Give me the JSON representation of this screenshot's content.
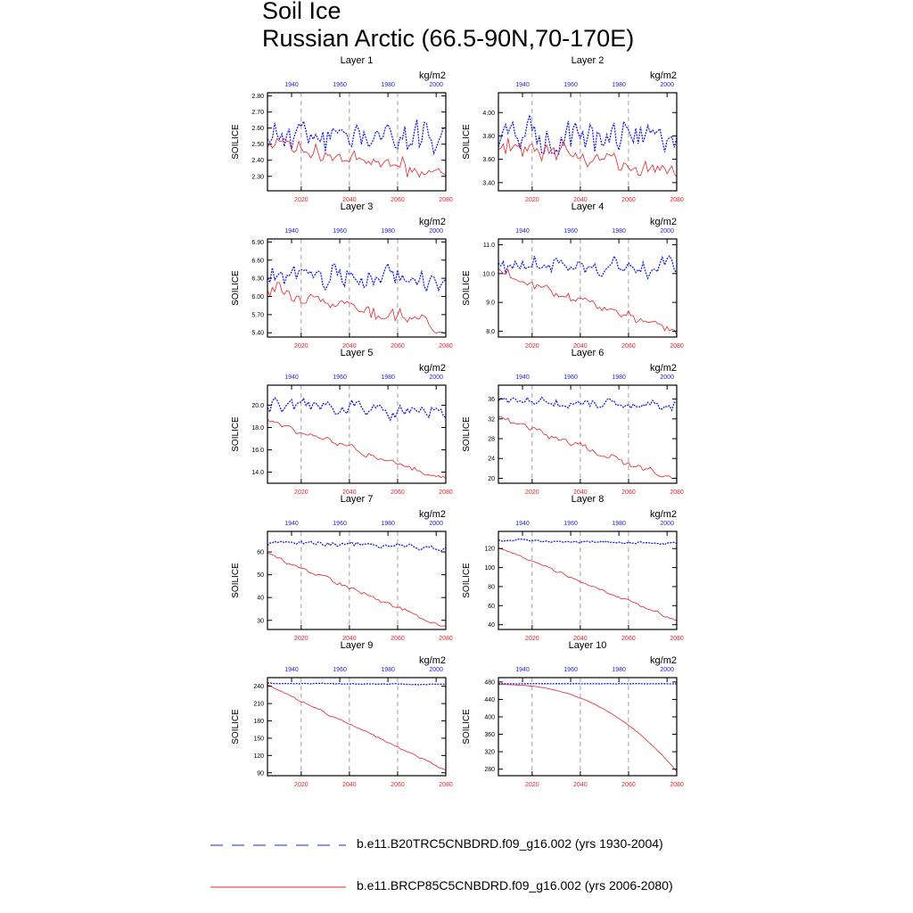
{
  "title": "Soil Ice",
  "subtitle": "Russian Arctic (66.5-90N,70-170E)",
  "colors": {
    "historical": "#1f1fe0",
    "future": "#e8242a",
    "axis": "#000000",
    "grid": "#888888"
  },
  "legend": [
    {
      "label": "b.e11.B20TRC5CNBDRD.f09_g16.002 (yrs 1930-2004)",
      "style": "dashed",
      "color": "#1f1fe0"
    },
    {
      "label": "b.e11.BRCP85C5CNBDRD.f09_g16.002 (yrs 2006-2080)",
      "style": "solid",
      "color": "#e8242a"
    }
  ],
  "chart_data": [
    {
      "type": "line",
      "title": "Layer 1",
      "units": "kg/m2",
      "ylabel": "SOILICE",
      "yticks": [
        "2.30",
        "2.40",
        "2.50",
        "2.60",
        "2.70",
        "2.80"
      ],
      "ylim": [
        2.21,
        2.82
      ],
      "top_axis_label": [
        "1940",
        "1960",
        "1980",
        "2000"
      ],
      "bottom_axis_label": [
        "2020",
        "2040",
        "2060",
        "2080"
      ],
      "x_top_range": [
        1930,
        2004
      ],
      "x_bottom_range": [
        2006,
        2080
      ],
      "series": [
        {
          "name": "b.e11.B20TRC5CNBDRD.f09_g16.002",
          "mean_start": 2.55,
          "mean_end": 2.55,
          "noise": 0.13,
          "seed": 11
        },
        {
          "name": "b.e11.BRCP85C5CNBDRD.f09_g16.002",
          "mean_start": 2.5,
          "mean_end": 2.32,
          "noise": 0.07,
          "seed": 12
        }
      ]
    },
    {
      "type": "line",
      "title": "Layer 2",
      "units": "kg/m2",
      "ylabel": "SOILICE",
      "yticks": [
        "3.40",
        "3.60",
        "3.80",
        "4.00"
      ],
      "ylim": [
        3.33,
        4.17
      ],
      "top_axis_label": [
        "1940",
        "1960",
        "1980",
        "2000"
      ],
      "bottom_axis_label": [
        "2020",
        "2040",
        "2060",
        "2080"
      ],
      "x_top_range": [
        1930,
        2004
      ],
      "x_bottom_range": [
        2006,
        2080
      ],
      "series": [
        {
          "name": "b.e11.B20TRC5CNBDRD.f09_g16.002",
          "mean_start": 3.8,
          "mean_end": 3.8,
          "noise": 0.17,
          "seed": 21
        },
        {
          "name": "b.e11.BRCP85C5CNBDRD.f09_g16.002",
          "mean_start": 3.75,
          "mean_end": 3.48,
          "noise": 0.1,
          "seed": 22
        }
      ]
    },
    {
      "type": "line",
      "title": "Layer 3",
      "units": "kg/m2",
      "ylabel": "SOILICE",
      "yticks": [
        "5.40",
        "5.70",
        "6.00",
        "6.30",
        "6.60",
        "6.90"
      ],
      "ylim": [
        5.33,
        6.95
      ],
      "top_axis_label": [
        "1940",
        "1960",
        "1980",
        "2000"
      ],
      "bottom_axis_label": [
        "2020",
        "2040",
        "2060",
        "2080"
      ],
      "x_top_range": [
        1930,
        2004
      ],
      "x_bottom_range": [
        2006,
        2080
      ],
      "series": [
        {
          "name": "b.e11.B20TRC5CNBDRD.f09_g16.002",
          "mean_start": 6.35,
          "mean_end": 6.3,
          "noise": 0.24,
          "seed": 31
        },
        {
          "name": "b.e11.BRCP85C5CNBDRD.f09_g16.002",
          "mean_start": 6.15,
          "mean_end": 5.5,
          "noise": 0.15,
          "seed": 32
        }
      ]
    },
    {
      "type": "line",
      "title": "Layer 4",
      "units": "kg/m2",
      "ylabel": "SOILICE",
      "yticks": [
        "8.0",
        "9.0",
        "10.0",
        "11.0"
      ],
      "ylim": [
        7.8,
        11.2
      ],
      "top_axis_label": [
        "1940",
        "1960",
        "1980",
        "2000"
      ],
      "bottom_axis_label": [
        "2020",
        "2040",
        "2060",
        "2080"
      ],
      "x_top_range": [
        1930,
        2004
      ],
      "x_bottom_range": [
        2006,
        2080
      ],
      "series": [
        {
          "name": "b.e11.B20TRC5CNBDRD.f09_g16.002",
          "mean_start": 10.3,
          "mean_end": 10.1,
          "noise": 0.45,
          "seed": 41
        },
        {
          "name": "b.e11.BRCP85C5CNBDRD.f09_g16.002",
          "mean_start": 10.0,
          "mean_end": 8.0,
          "noise": 0.22,
          "seed": 42
        }
      ]
    },
    {
      "type": "line",
      "title": "Layer 5",
      "units": "kg/m2",
      "ylabel": "SOILICE",
      "yticks": [
        "14.0",
        "16.0",
        "18.0",
        "20.0"
      ],
      "ylim": [
        13.0,
        21.8
      ],
      "top_axis_label": [
        "1940",
        "1960",
        "1980",
        "2000"
      ],
      "bottom_axis_label": [
        "2020",
        "2040",
        "2060",
        "2080"
      ],
      "x_top_range": [
        1930,
        2004
      ],
      "x_bottom_range": [
        2006,
        2080
      ],
      "series": [
        {
          "name": "b.e11.B20TRC5CNBDRD.f09_g16.002",
          "mean_start": 20.0,
          "mean_end": 19.3,
          "noise": 0.9,
          "seed": 51
        },
        {
          "name": "b.e11.BRCP85C5CNBDRD.f09_g16.002",
          "mean_start": 18.6,
          "mean_end": 13.3,
          "noise": 0.4,
          "seed": 52
        }
      ]
    },
    {
      "type": "line",
      "title": "Layer 6",
      "units": "kg/m2",
      "ylabel": "SOILICE",
      "yticks": [
        "20",
        "24",
        "28",
        "32",
        "36"
      ],
      "ylim": [
        19.0,
        38.8
      ],
      "top_axis_label": [
        "1940",
        "1960",
        "1980",
        "2000"
      ],
      "bottom_axis_label": [
        "2020",
        "2040",
        "2060",
        "2080"
      ],
      "x_top_range": [
        1930,
        2004
      ],
      "x_bottom_range": [
        2006,
        2080
      ],
      "series": [
        {
          "name": "b.e11.B20TRC5CNBDRD.f09_g16.002",
          "mean_start": 35.5,
          "mean_end": 34.5,
          "noise": 1.3,
          "seed": 61
        },
        {
          "name": "b.e11.BRCP85C5CNBDRD.f09_g16.002",
          "mean_start": 32.5,
          "mean_end": 19.5,
          "noise": 0.8,
          "seed": 62
        }
      ]
    },
    {
      "type": "line",
      "title": "Layer 7",
      "units": "kg/m2",
      "ylabel": "SOILICE",
      "yticks": [
        "30",
        "40",
        "50",
        "60"
      ],
      "ylim": [
        26.0,
        69.0
      ],
      "top_axis_label": [
        "1940",
        "1960",
        "1980",
        "2000"
      ],
      "bottom_axis_label": [
        "2020",
        "2040",
        "2060",
        "2080"
      ],
      "x_top_range": [
        1930,
        2004
      ],
      "x_bottom_range": [
        2006,
        2080
      ],
      "series": [
        {
          "name": "b.e11.B20TRC5CNBDRD.f09_g16.002",
          "mean_start": 64.5,
          "mean_end": 62.0,
          "noise": 1.6,
          "seed": 71
        },
        {
          "name": "b.e11.BRCP85C5CNBDRD.f09_g16.002",
          "mean_start": 59.0,
          "mean_end": 27.0,
          "noise": 1.2,
          "seed": 72
        }
      ]
    },
    {
      "type": "line",
      "title": "Layer 8",
      "units": "kg/m2",
      "ylabel": "SOILICE",
      "yticks": [
        "40",
        "60",
        "80",
        "100",
        "120"
      ],
      "ylim": [
        35.0,
        138.0
      ],
      "top_axis_label": [
        "1940",
        "1960",
        "1980",
        "2000"
      ],
      "bottom_axis_label": [
        "2020",
        "2040",
        "2060",
        "2080"
      ],
      "x_top_range": [
        1930,
        2004
      ],
      "x_bottom_range": [
        2006,
        2080
      ],
      "series": [
        {
          "name": "b.e11.B20TRC5CNBDRD.f09_g16.002",
          "mean_start": 129.0,
          "mean_end": 125.0,
          "noise": 2.0,
          "seed": 81
        },
        {
          "name": "b.e11.BRCP85C5CNBDRD.f09_g16.002",
          "mean_start": 121.0,
          "mean_end": 44.0,
          "noise": 1.8,
          "seed": 82
        }
      ]
    },
    {
      "type": "line",
      "title": "Layer 9",
      "units": "kg/m2",
      "ylabel": "SOILICE",
      "yticks": [
        "90",
        "120",
        "150",
        "180",
        "210",
        "240"
      ],
      "ylim": [
        85.0,
        255.0
      ],
      "top_axis_label": [
        "1940",
        "1960",
        "1980",
        "2000"
      ],
      "bottom_axis_label": [
        "2020",
        "2040",
        "2060",
        "2080"
      ],
      "x_top_range": [
        1930,
        2004
      ],
      "x_bottom_range": [
        2006,
        2080
      ],
      "series": [
        {
          "name": "b.e11.B20TRC5CNBDRD.f09_g16.002",
          "mean_start": 245.0,
          "mean_end": 243.0,
          "noise": 1.2,
          "seed": 91
        },
        {
          "name": "b.e11.BRCP85C5CNBDRD.f09_g16.002",
          "mean_start": 242.0,
          "mean_end": 95.0,
          "noise": 2.0,
          "seed": 92
        }
      ]
    },
    {
      "type": "line",
      "title": "Layer 10",
      "units": "kg/m2",
      "ylabel": "SOILICE",
      "yticks": [
        "280",
        "320",
        "360",
        "400",
        "440",
        "480"
      ],
      "ylim": [
        265.0,
        490.0
      ],
      "top_axis_label": [
        "1940",
        "1960",
        "1980",
        "2000"
      ],
      "bottom_axis_label": [
        "2020",
        "2040",
        "2060",
        "2080"
      ],
      "x_top_range": [
        1930,
        2004
      ],
      "x_bottom_range": [
        2006,
        2080
      ],
      "series": [
        {
          "name": "b.e11.B20TRC5CNBDRD.f09_g16.002",
          "mean_start": 476.0,
          "mean_end": 476.0,
          "noise": 0.6,
          "seed": 101
        },
        {
          "name": "b.e11.BRCP85C5CNBDRD.f09_g16.002",
          "mean_start": 474.0,
          "mean_end": 275.0,
          "noise": 0.6,
          "seed": 102,
          "shape": "accelerating"
        }
      ]
    }
  ]
}
